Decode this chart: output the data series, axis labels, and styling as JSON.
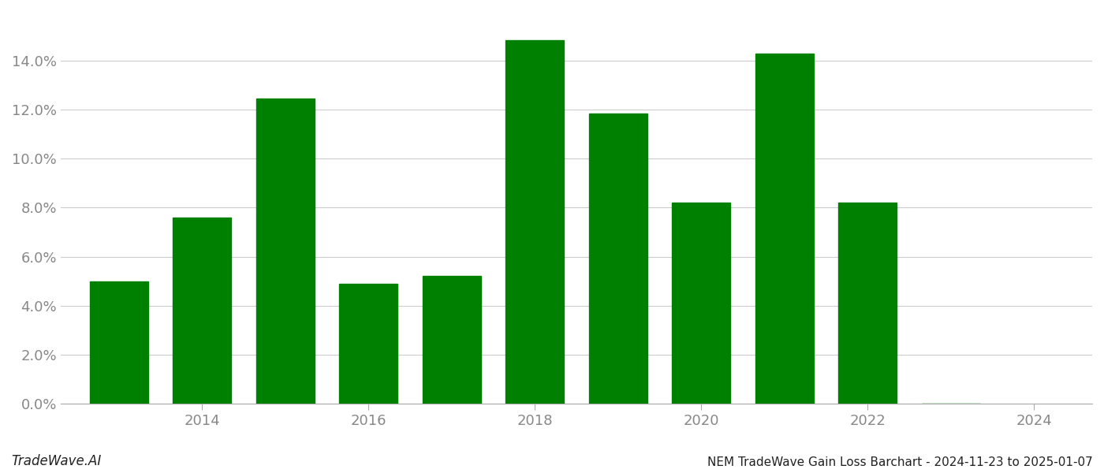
{
  "years": [
    2013,
    2014,
    2015,
    2016,
    2017,
    2018,
    2019,
    2020,
    2021,
    2022,
    2023
  ],
  "values": [
    0.05,
    0.076,
    0.1245,
    0.049,
    0.052,
    0.1485,
    0.1185,
    0.082,
    0.143,
    0.082,
    0.0
  ],
  "bar_color": "#008000",
  "background_color": "#ffffff",
  "grid_color": "#cccccc",
  "title": "NEM TradeWave Gain Loss Barchart - 2024-11-23 to 2025-01-07",
  "watermark": "TradeWave.AI",
  "ylim": [
    0,
    0.16
  ],
  "yticks": [
    0.0,
    0.02,
    0.04,
    0.06,
    0.08,
    0.1,
    0.12,
    0.14
  ],
  "xtick_positions": [
    2014,
    2016,
    2018,
    2020,
    2022,
    2024
  ],
  "xlim": [
    2012.3,
    2024.7
  ],
  "title_fontsize": 11,
  "tick_fontsize": 13,
  "watermark_fontsize": 12,
  "bar_width": 0.7
}
